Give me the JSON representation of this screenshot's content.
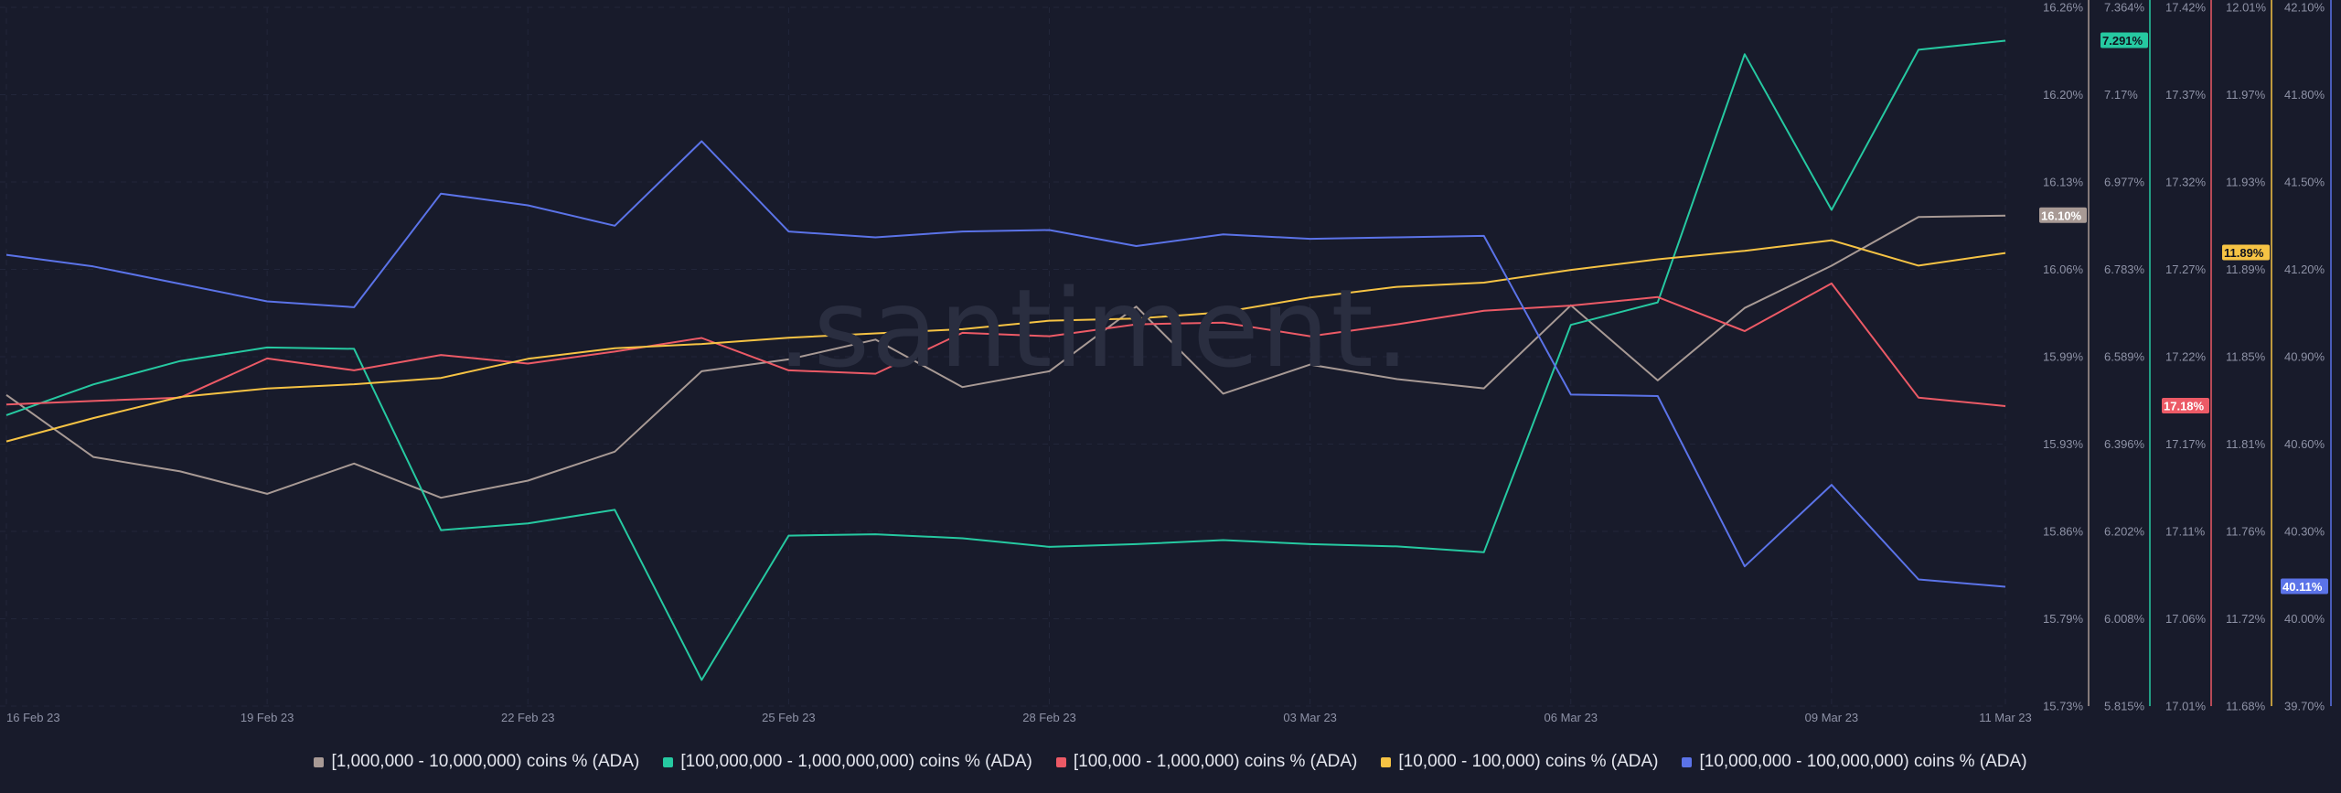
{
  "watermark": ".santiment.",
  "chart_data": {
    "type": "line",
    "x": [
      "16 Feb 23",
      "17 Feb 23",
      "18 Feb 23",
      "19 Feb 23",
      "20 Feb 23",
      "21 Feb 23",
      "22 Feb 23",
      "23 Feb 23",
      "24 Feb 23",
      "25 Feb 23",
      "26 Feb 23",
      "27 Feb 23",
      "28 Feb 23",
      "01 Mar 23",
      "02 Mar 23",
      "03 Mar 23",
      "04 Mar 23",
      "05 Mar 23",
      "06 Mar 23",
      "07 Mar 23",
      "08 Mar 23",
      "09 Mar 23",
      "10 Mar 23",
      "11 Mar 23"
    ],
    "x_tick_labels": [
      "16 Feb 23",
      "19 Feb 23",
      "22 Feb 23",
      "25 Feb 23",
      "28 Feb 23",
      "03 Mar 23",
      "06 Mar 23",
      "09 Mar 23",
      "11 Mar 23"
    ],
    "grid": true,
    "series": [
      {
        "name": "[1,000,000 - 10,000,000) coins % (ADA)",
        "color": "#a89a95",
        "ylim": [
          15.73,
          16.26
        ],
        "y_ticks": [
          "16.26%",
          "16.20%",
          "16.13%",
          "16.06%",
          "15.99%",
          "15.93%",
          "15.86%",
          "15.79%",
          "15.73%"
        ],
        "last_label": "16.10%",
        "values": [
          15.966,
          15.919,
          15.908,
          15.891,
          15.914,
          15.888,
          15.901,
          15.923,
          15.984,
          15.993,
          16.008,
          15.972,
          15.984,
          16.033,
          15.967,
          15.989,
          15.978,
          15.971,
          16.034,
          15.977,
          16.032,
          16.064,
          16.101,
          16.102
        ]
      },
      {
        "name": "[100,000,000 - 1,000,000,000) coins % (ADA)",
        "color": "#26c9a1",
        "ylim": [
          5.815,
          7.364
        ],
        "y_ticks": [
          "7.364%",
          "7.17%",
          "6.977%",
          "6.783%",
          "6.589%",
          "6.396%",
          "6.202%",
          "6.008%",
          "5.815%"
        ],
        "last_label": "7.291%",
        "values": [
          6.46,
          6.528,
          6.58,
          6.61,
          6.607,
          6.205,
          6.22,
          6.25,
          5.873,
          6.193,
          6.196,
          6.187,
          6.168,
          6.174,
          6.183,
          6.174,
          6.169,
          6.156,
          6.66,
          6.71,
          7.26,
          6.915,
          7.27,
          7.29
        ]
      },
      {
        "name": "[100,000  - 1,000,000) coins % (ADA)",
        "color": "#ec5a66",
        "ylim": [
          17.01,
          17.42
        ],
        "y_ticks": [
          "17.42%",
          "17.37%",
          "17.32%",
          "17.27%",
          "17.22%",
          "17.17%",
          "17.11%",
          "17.06%",
          "17.01%"
        ],
        "last_label": "17.18%",
        "values": [
          17.187,
          17.189,
          17.191,
          17.214,
          17.207,
          17.216,
          17.211,
          17.218,
          17.226,
          17.207,
          17.205,
          17.229,
          17.227,
          17.234,
          17.235,
          17.227,
          17.234,
          17.242,
          17.245,
          17.25,
          17.23,
          17.258,
          17.191,
          17.186
        ]
      },
      {
        "name": "[10,000 - 100,000) coins % (ADA)",
        "color": "#f6c344",
        "ylim": [
          11.68,
          12.01
        ],
        "y_ticks": [
          "12.01%",
          "11.97%",
          "11.93%",
          "11.89%",
          "11.85%",
          "11.81%",
          "11.76%",
          "11.72%",
          "11.68%"
        ],
        "last_label": "11.89%",
        "values": [
          11.805,
          11.816,
          11.826,
          11.83,
          11.832,
          11.835,
          11.844,
          11.849,
          11.851,
          11.854,
          11.856,
          11.858,
          11.862,
          11.863,
          11.866,
          11.873,
          11.878,
          11.88,
          11.886,
          11.891,
          11.895,
          11.9,
          11.888,
          11.894
        ]
      },
      {
        "name": "[10,000,000 - 100,000,000) coins % (ADA)",
        "color": "#5b73e8",
        "ylim": [
          39.7,
          42.1
        ],
        "y_ticks": [
          "42.10%",
          "41.80%",
          "41.50%",
          "41.20%",
          "40.90%",
          "40.60%",
          "40.30%",
          "40.00%",
          "39.70%"
        ],
        "last_label": "40.11%",
        "values": [
          41.25,
          41.21,
          41.15,
          41.09,
          41.07,
          41.46,
          41.42,
          41.35,
          41.64,
          41.33,
          41.31,
          41.33,
          41.335,
          41.28,
          41.32,
          41.305,
          41.31,
          41.315,
          40.77,
          40.765,
          40.18,
          40.46,
          40.135,
          40.11
        ]
      }
    ]
  }
}
